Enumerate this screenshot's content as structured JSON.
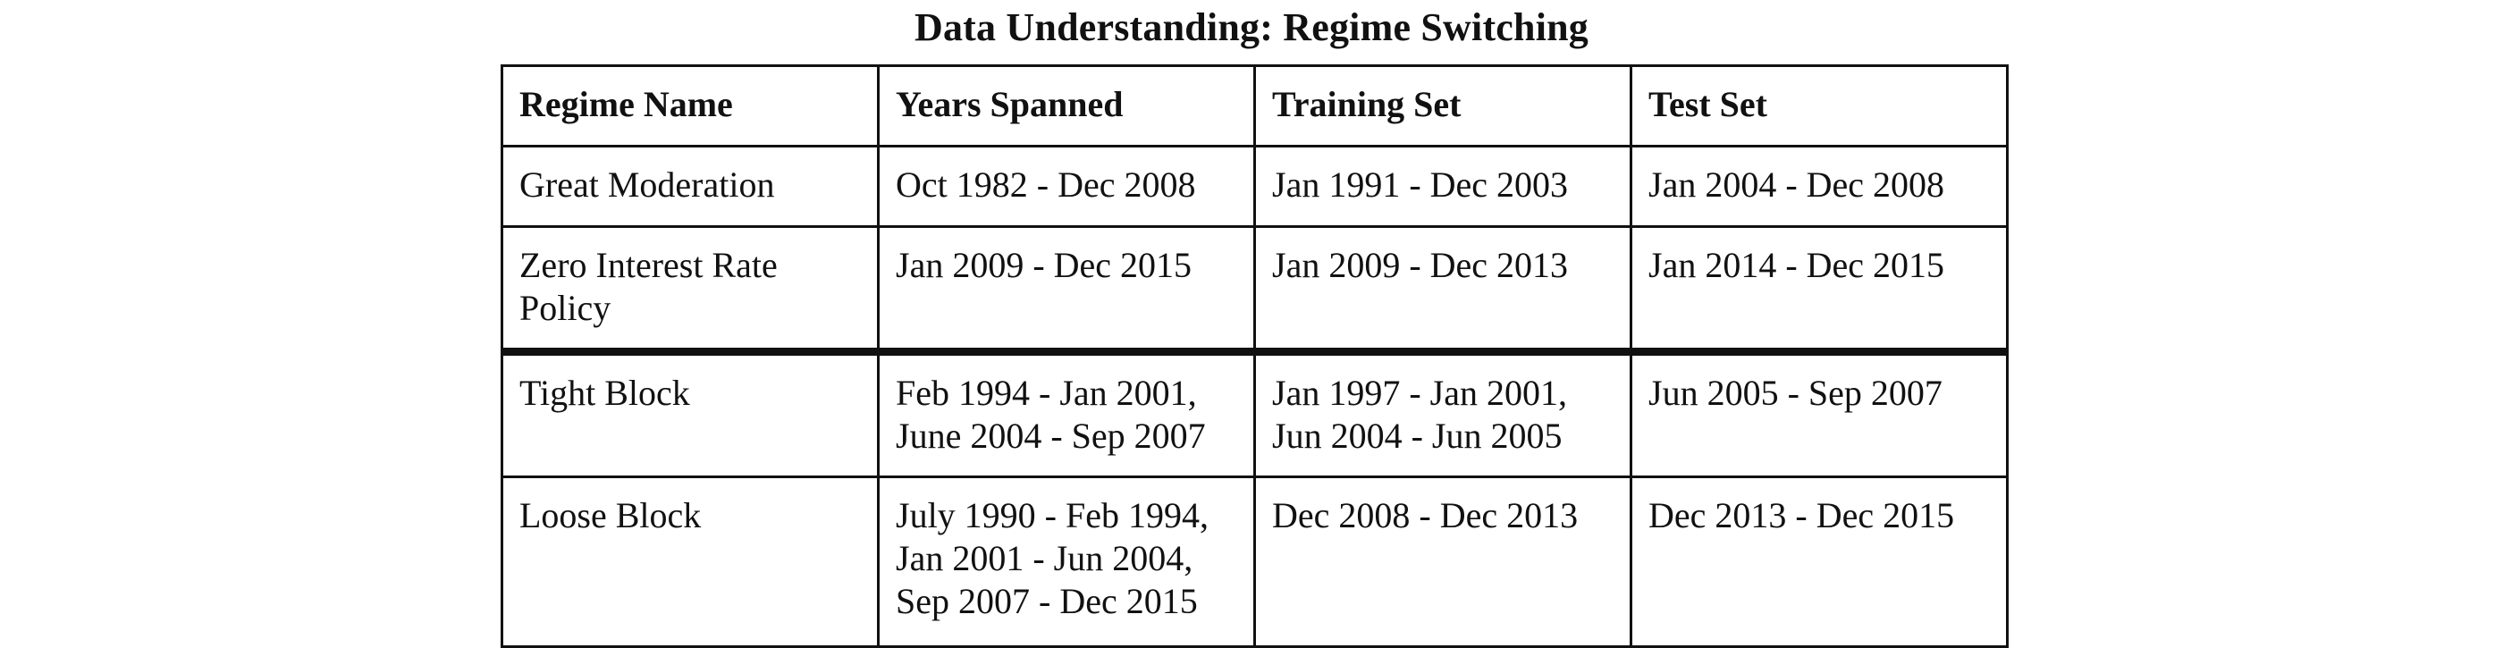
{
  "title": "Data Understanding: Regime Switching",
  "table": {
    "headers": [
      "Regime Name",
      "Years Spanned",
      "Training Set",
      "Test Set"
    ],
    "rows": [
      [
        "Great Moderation",
        "Oct 1982 - Dec 2008",
        "Jan 1991 - Dec 2003",
        "Jan 2004 - Dec 2008"
      ],
      [
        "Zero Interest Rate\nPolicy",
        "Jan 2009 - Dec 2015",
        "Jan 2009 - Dec 2013",
        "Jan 2014 - Dec 2015"
      ],
      [
        "Tight Block",
        "Feb 1994 - Jan 2001,\nJune 2004 - Sep 2007",
        "Jan 1997 - Jan 2001,\nJun 2004 - Jun 2005",
        "Jun 2005 - Sep 2007"
      ],
      [
        "Loose Block",
        "July 1990 - Feb 1994,\nJan 2001 - Jun 2004,\nSep 2007 - Dec 2015",
        "Dec 2008 - Dec 2013",
        "Dec 2013 - Dec 2015"
      ]
    ]
  }
}
